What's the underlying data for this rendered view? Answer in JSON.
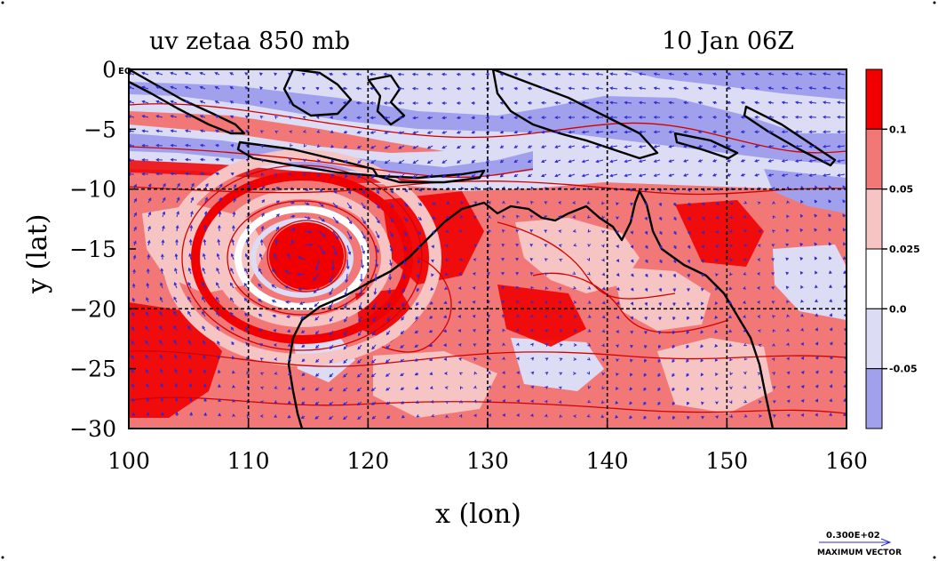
{
  "title_left": "uv zetaa 850 mb",
  "title_right": "10 Jan 06Z",
  "eq_label": "EQ",
  "x_axis": {
    "label": "x (lon)",
    "ticks": [
      100,
      110,
      120,
      130,
      140,
      150,
      160
    ],
    "range": [
      100,
      160
    ]
  },
  "y_axis": {
    "label": "y (lat)",
    "ticks": [
      0,
      -5,
      -10,
      -15,
      -20,
      -25,
      -30
    ],
    "range": [
      -30,
      0
    ],
    "gridlines": [
      -10,
      -20
    ]
  },
  "gridlines_lon": [
    110,
    120,
    130,
    140,
    150
  ],
  "colorbar": {
    "levels": [
      {
        "label": "0.1",
        "color": "#f00000"
      },
      {
        "label": "0.05",
        "color": "#f27878"
      },
      {
        "label": "0.025",
        "color": "#f7c4c4"
      },
      {
        "label": "0.0",
        "color": "#ffffff"
      },
      {
        "label": "-0.05",
        "color": "#dcdcf5"
      },
      {
        "label": "",
        "color": "#a0a0ec"
      }
    ]
  },
  "colors": {
    "vector": "#2a2ad6",
    "contour": "#d40000",
    "coast": "#000000"
  },
  "vector_legend": {
    "value": "0.300E+02",
    "label": "MAXIMUM VECTOR"
  },
  "cyclone_center": {
    "lon": 115,
    "lat": -15.5
  }
}
